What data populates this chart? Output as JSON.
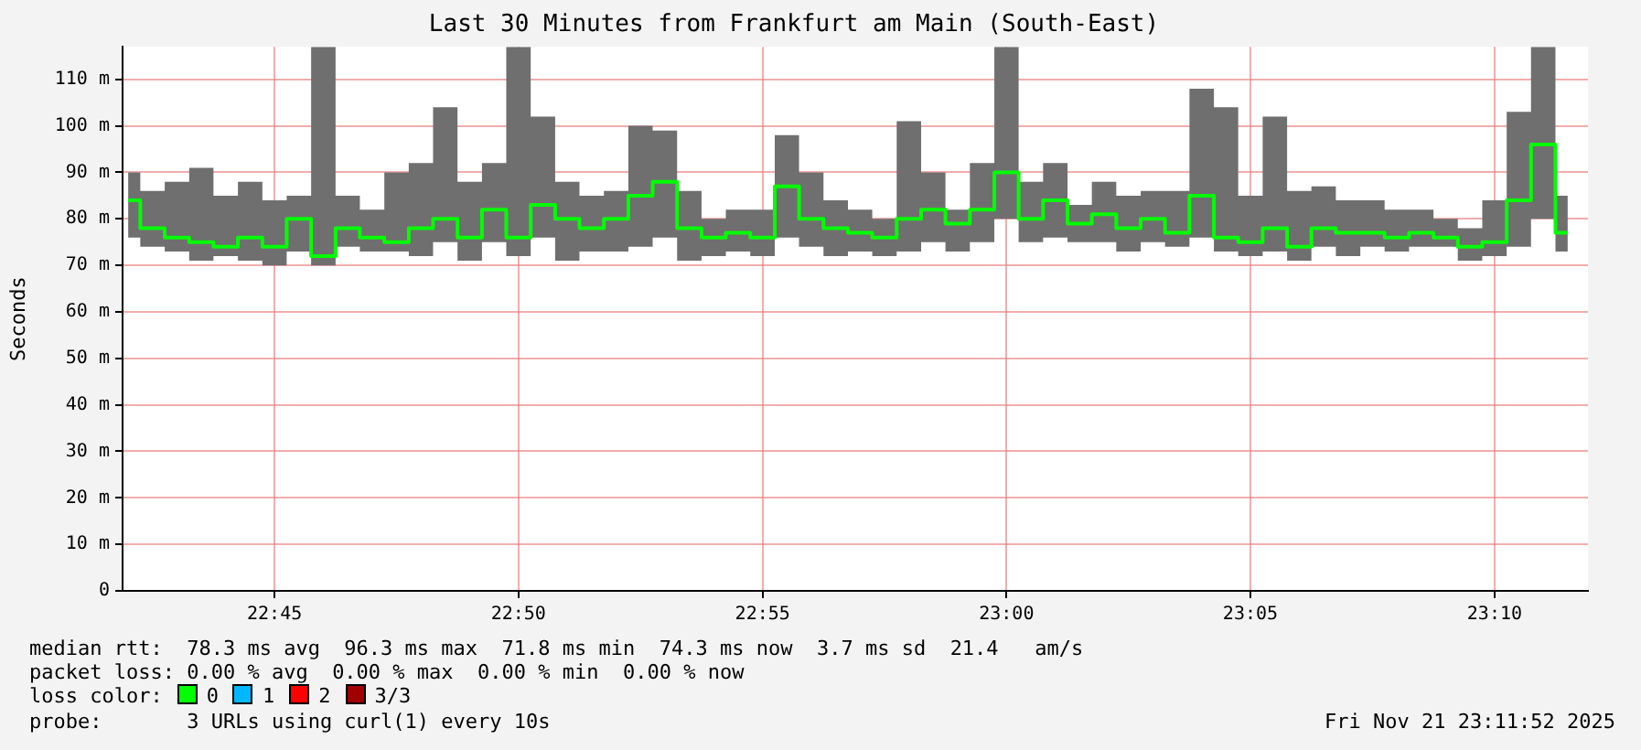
{
  "chart_data": {
    "type": "step",
    "title": "Last 30 Minutes from Frankfurt am Main (South-East)",
    "ylabel": "Seconds",
    "x": [
      22.7,
      22.7083,
      22.7167,
      22.725,
      22.7333,
      22.7417,
      22.75,
      22.7583,
      22.7667,
      22.775,
      22.7833,
      22.7917,
      22.8,
      22.8083,
      22.8167,
      22.825,
      22.8333,
      22.8417,
      22.85,
      22.8583,
      22.8667,
      22.875,
      22.8833,
      22.8917,
      22.9,
      22.9083,
      22.9167,
      22.925,
      22.9333,
      22.9417,
      22.95,
      22.9583,
      22.9667,
      22.975,
      22.9833,
      22.9917,
      23.0,
      23.0083,
      23.0167,
      23.025,
      23.0333,
      23.0417,
      23.05,
      23.0583,
      23.0667,
      23.075,
      23.0833,
      23.0917,
      23.1,
      23.1083,
      23.1167,
      23.125,
      23.1333,
      23.1417,
      23.15,
      23.1583,
      23.1667,
      23.175,
      23.1833,
      23.1917
    ],
    "series": [
      {
        "color": "#00ff00",
        "values": [
          84,
          78,
          76,
          75,
          74,
          76,
          74,
          80,
          72,
          78,
          76,
          75,
          78,
          80,
          76,
          82,
          76,
          83,
          80,
          78,
          80,
          85,
          88,
          78,
          76,
          77,
          76,
          87,
          80,
          78,
          77,
          76,
          80,
          82,
          79,
          82,
          90,
          80,
          84,
          79,
          81,
          78,
          80,
          77,
          85,
          76,
          75,
          78,
          74,
          78,
          77,
          77,
          76,
          77,
          76,
          74,
          75,
          84,
          96,
          77
        ],
        "lower": [
          76,
          74,
          73,
          71,
          72,
          71,
          70,
          73,
          70,
          74,
          73,
          73,
          72,
          75,
          71,
          75,
          72,
          76,
          71,
          73,
          73,
          74,
          76,
          71,
          72,
          73,
          72,
          76,
          74,
          72,
          73,
          72,
          73,
          75,
          73,
          75,
          80,
          75,
          76,
          75,
          75,
          73,
          75,
          74,
          76,
          73,
          72,
          73,
          71,
          74,
          72,
          74,
          73,
          74,
          74,
          71,
          72,
          74,
          80,
          73
        ],
        "upper": [
          90,
          86,
          88,
          91,
          85,
          88,
          84,
          85,
          117,
          85,
          82,
          90,
          92,
          104,
          88,
          92,
          117,
          102,
          88,
          85,
          86,
          100,
          99,
          86,
          80,
          82,
          82,
          98,
          90,
          84,
          82,
          80,
          101,
          90,
          82,
          92,
          117,
          88,
          92,
          83,
          88,
          85,
          86,
          86,
          108,
          104,
          85,
          102,
          86,
          87,
          84,
          84,
          82,
          82,
          80,
          78,
          84,
          103,
          117,
          85
        ]
      }
    ],
    "xlim": [
      22.6981,
      23.1986
    ],
    "xticks": [
      {
        "value": 22.75,
        "label": "22:45"
      },
      {
        "value": 22.8333,
        "label": "22:50"
      },
      {
        "value": 22.9167,
        "label": "22:55"
      },
      {
        "value": 23.0,
        "label": "23:00"
      },
      {
        "value": 23.0833,
        "label": "23:05"
      },
      {
        "value": 23.1667,
        "label": "23:10"
      }
    ],
    "ylim": [
      0,
      117
    ],
    "yticks": [
      0,
      {
        "value": 10,
        "label": "10 m"
      },
      {
        "value": 20,
        "label": "20 m"
      },
      {
        "value": 30,
        "label": "30 m"
      },
      {
        "value": 40,
        "label": "40 m"
      },
      {
        "value": 50,
        "label": "50 m"
      },
      {
        "value": 60,
        "label": "60 m"
      },
      {
        "value": 70,
        "label": "70 m"
      },
      {
        "value": 80,
        "label": "80 m"
      },
      {
        "value": 90,
        "label": "90 m"
      },
      {
        "value": 100,
        "label": "100 m"
      },
      {
        "value": 110,
        "label": "110 m"
      }
    ],
    "grid": true,
    "annotations": [
      "median rtt:  78.3 ms avg  96.3 ms max  71.8 ms min  74.3 ms now  3.7 ms sd  21.4   am/s",
      "packet loss: 0.00 % avg  0.00 % max  0.00 % min  0.00 % now",
      "loss color:",
      "0",
      "1",
      "2",
      "3/3",
      "probe:       3 URLs using curl(1) every 10s",
      "Fri Nov 21 23:11:52 2025"
    ]
  }
}
